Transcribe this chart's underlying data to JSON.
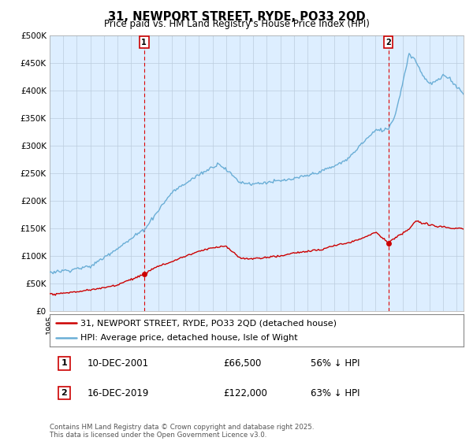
{
  "title": "31, NEWPORT STREET, RYDE, PO33 2QD",
  "subtitle": "Price paid vs. HM Land Registry's House Price Index (HPI)",
  "ylim": [
    0,
    500000
  ],
  "yticks": [
    0,
    50000,
    100000,
    150000,
    200000,
    250000,
    300000,
    350000,
    400000,
    450000,
    500000
  ],
  "ytick_labels": [
    "£0",
    "£50K",
    "£100K",
    "£150K",
    "£200K",
    "£250K",
    "£300K",
    "£350K",
    "£400K",
    "£450K",
    "£500K"
  ],
  "hpi_color": "#6aaed6",
  "price_color": "#cc0000",
  "vline_color": "#dd0000",
  "annotation_box_color": "#cc0000",
  "chart_bg_color": "#ddeeff",
  "background_color": "#ffffff",
  "grid_color": "#bbccdd",
  "legend_label_red": "31, NEWPORT STREET, RYDE, PO33 2QD (detached house)",
  "legend_label_blue": "HPI: Average price, detached house, Isle of Wight",
  "annotation1_date": "10-DEC-2001",
  "annotation1_price": "£66,500",
  "annotation1_hpi": "56% ↓ HPI",
  "annotation2_date": "16-DEC-2019",
  "annotation2_price": "£122,000",
  "annotation2_hpi": "63% ↓ HPI",
  "footer": "Contains HM Land Registry data © Crown copyright and database right 2025.\nThis data is licensed under the Open Government Licence v3.0.",
  "sale1_year": 2001.96,
  "sale1_price": 66500,
  "sale2_year": 2019.96,
  "sale2_price": 122000,
  "xlim_start": 1995,
  "xlim_end": 2025.5
}
